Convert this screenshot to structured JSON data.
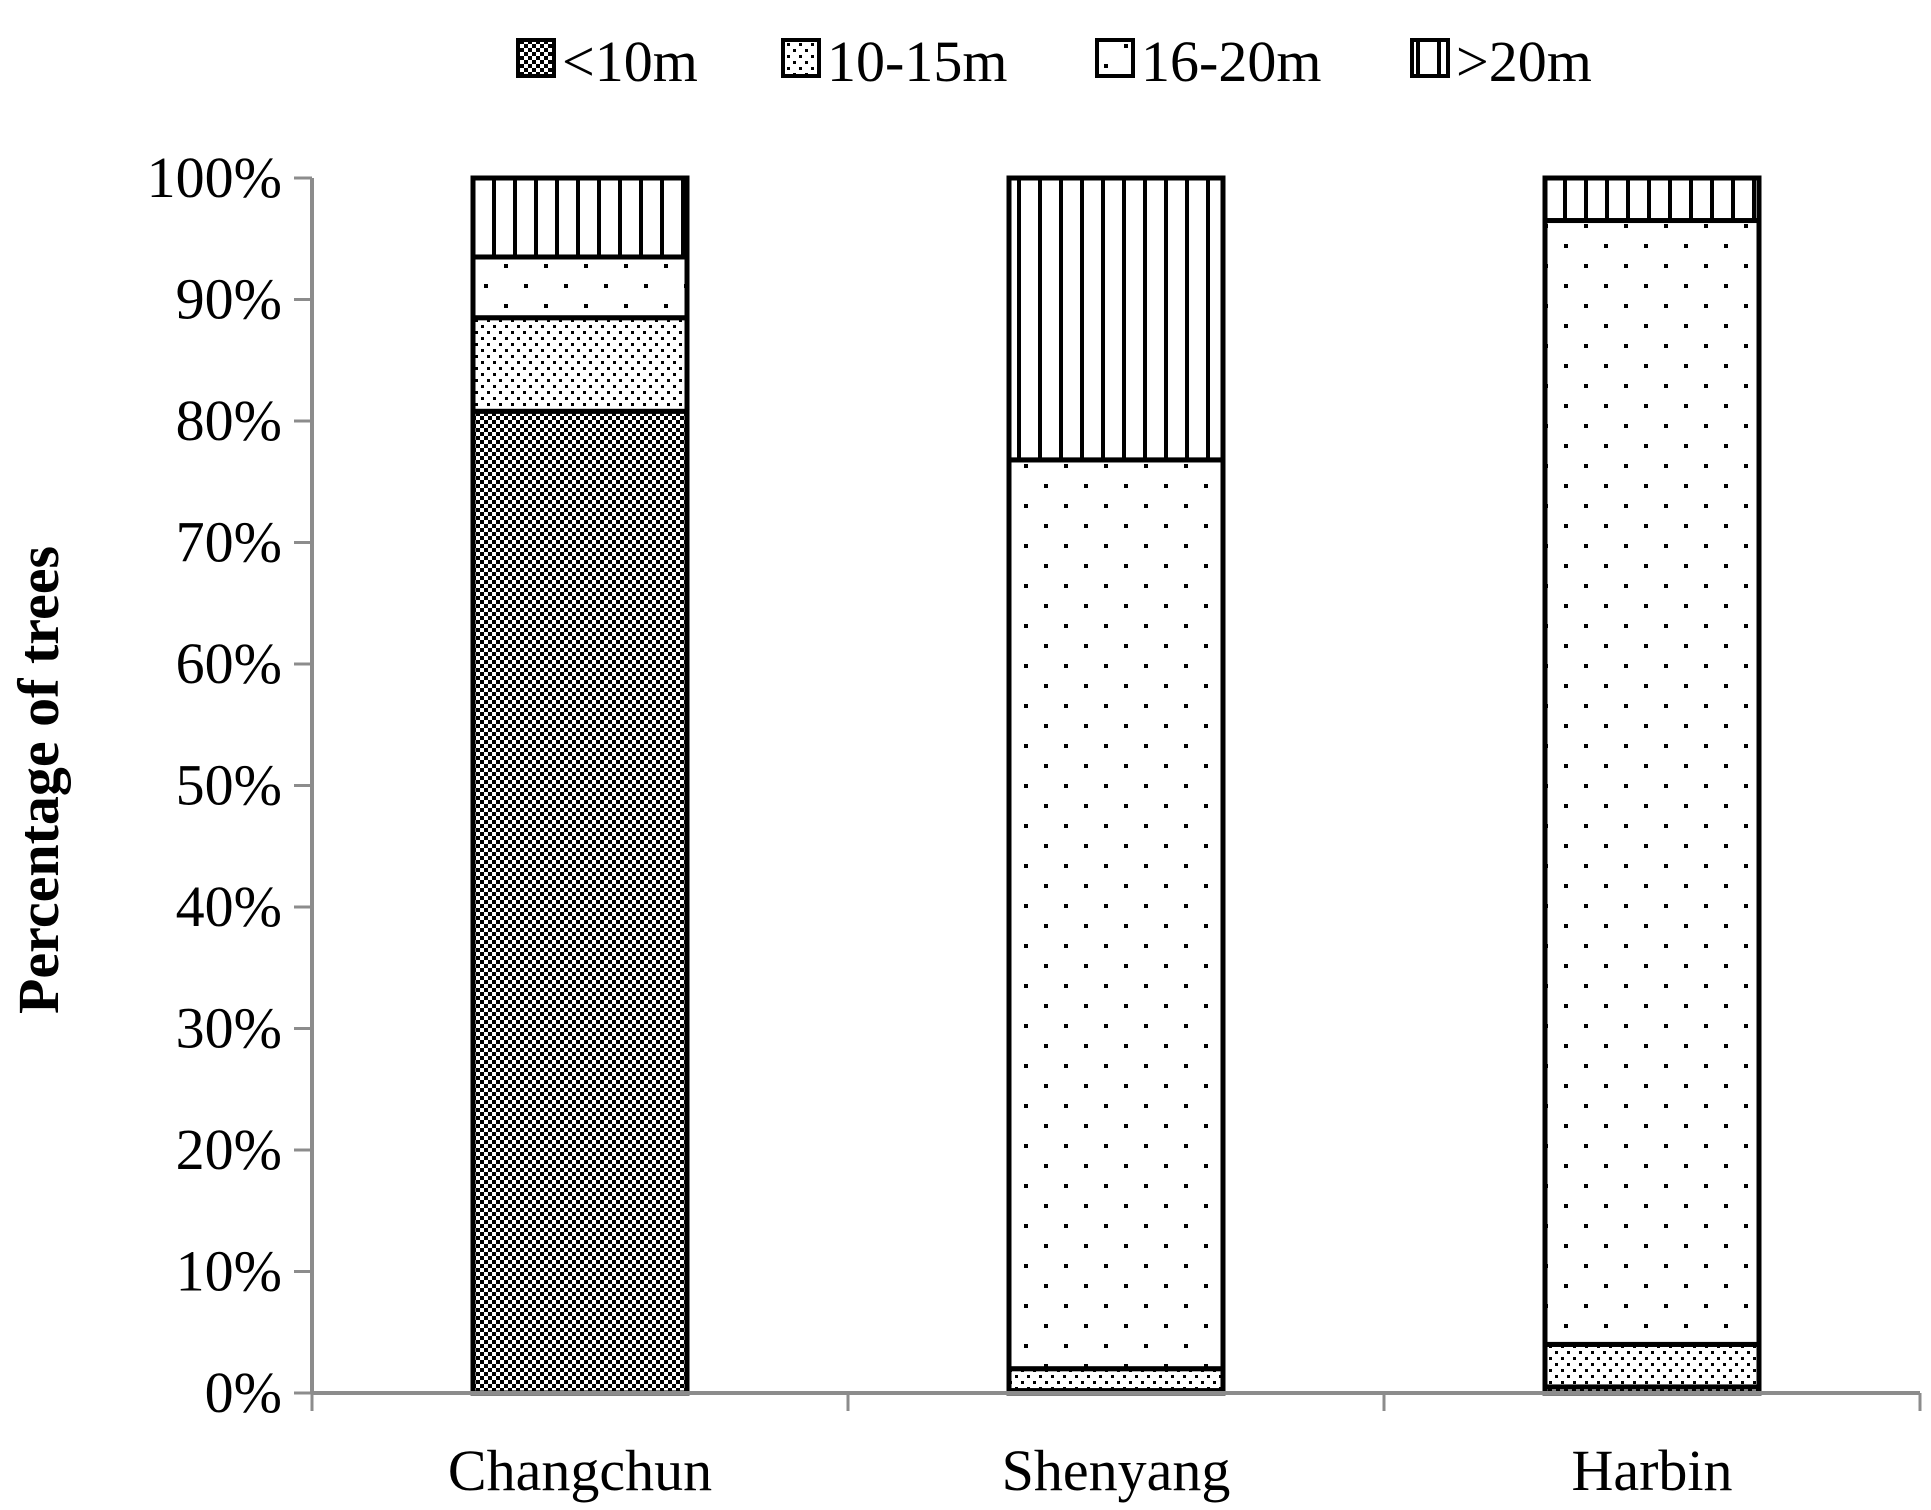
{
  "chart_data": {
    "type": "bar",
    "stacked": true,
    "percent_stacked": true,
    "title": "",
    "xlabel": "",
    "ylabel": "Percentage of trees",
    "ylim": [
      0,
      100
    ],
    "yticks": [
      "0%",
      "10%",
      "20%",
      "30%",
      "40%",
      "50%",
      "60%",
      "70%",
      "80%",
      "90%",
      "100%"
    ],
    "categories": [
      "Changchun",
      "Shenyang",
      "Harbin"
    ],
    "series": [
      {
        "name": "<10m",
        "values": [
          80.8,
          0.2,
          0.5
        ],
        "pattern": "dense-checker"
      },
      {
        "name": "10-15m",
        "values": [
          7.7,
          1.8,
          3.5
        ],
        "pattern": "fine-dots"
      },
      {
        "name": "16-20m",
        "values": [
          5.0,
          74.8,
          92.5
        ],
        "pattern": "sparse-dots"
      },
      {
        "name": ">20m",
        "values": [
          6.5,
          23.2,
          3.5
        ],
        "pattern": "vertical-lines"
      }
    ],
    "legend_position": "top",
    "grid": false,
    "colors": {
      "fill": "#ffffff",
      "stroke": "#000000",
      "axis": "#8c8c8c"
    }
  }
}
